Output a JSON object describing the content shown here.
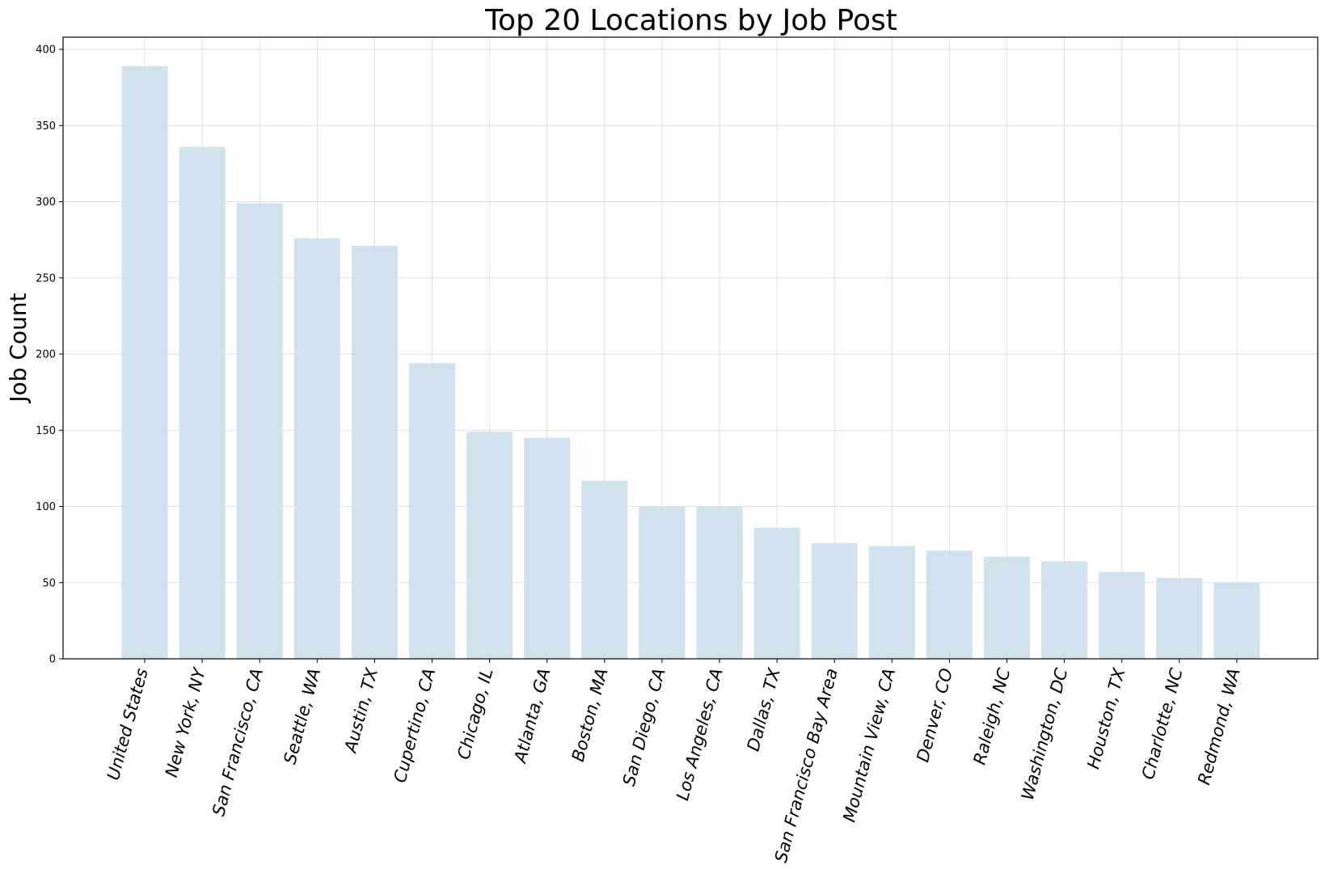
{
  "chart_data": {
    "type": "bar",
    "title": "Top 20 Locations by Job Post",
    "xlabel": "",
    "ylabel": "Job Count",
    "ylim": [
      0,
      408
    ],
    "yticks": [
      0,
      50,
      100,
      150,
      200,
      250,
      300,
      350,
      400
    ],
    "grid": true,
    "bar_color": "#d0e2ee",
    "categories": [
      "United States",
      "New York, NY",
      "San Francisco, CA",
      "Seattle, WA",
      "Austin, TX",
      "Cupertino, CA",
      "Chicago, IL",
      "Atlanta, GA",
      "Boston, MA",
      "San Diego, CA",
      "Los Angeles, CA",
      "Dallas, TX",
      "San Francisco Bay Area",
      "Mountain View, CA",
      "Denver, CO",
      "Raleigh, NC",
      "Washington, DC",
      "Houston, TX",
      "Charlotte, NC",
      "Redmond, WA"
    ],
    "values": [
      389,
      336,
      299,
      276,
      271,
      194,
      149,
      145,
      117,
      100,
      100,
      86,
      76,
      74,
      71,
      67,
      64,
      57,
      53,
      50
    ]
  }
}
